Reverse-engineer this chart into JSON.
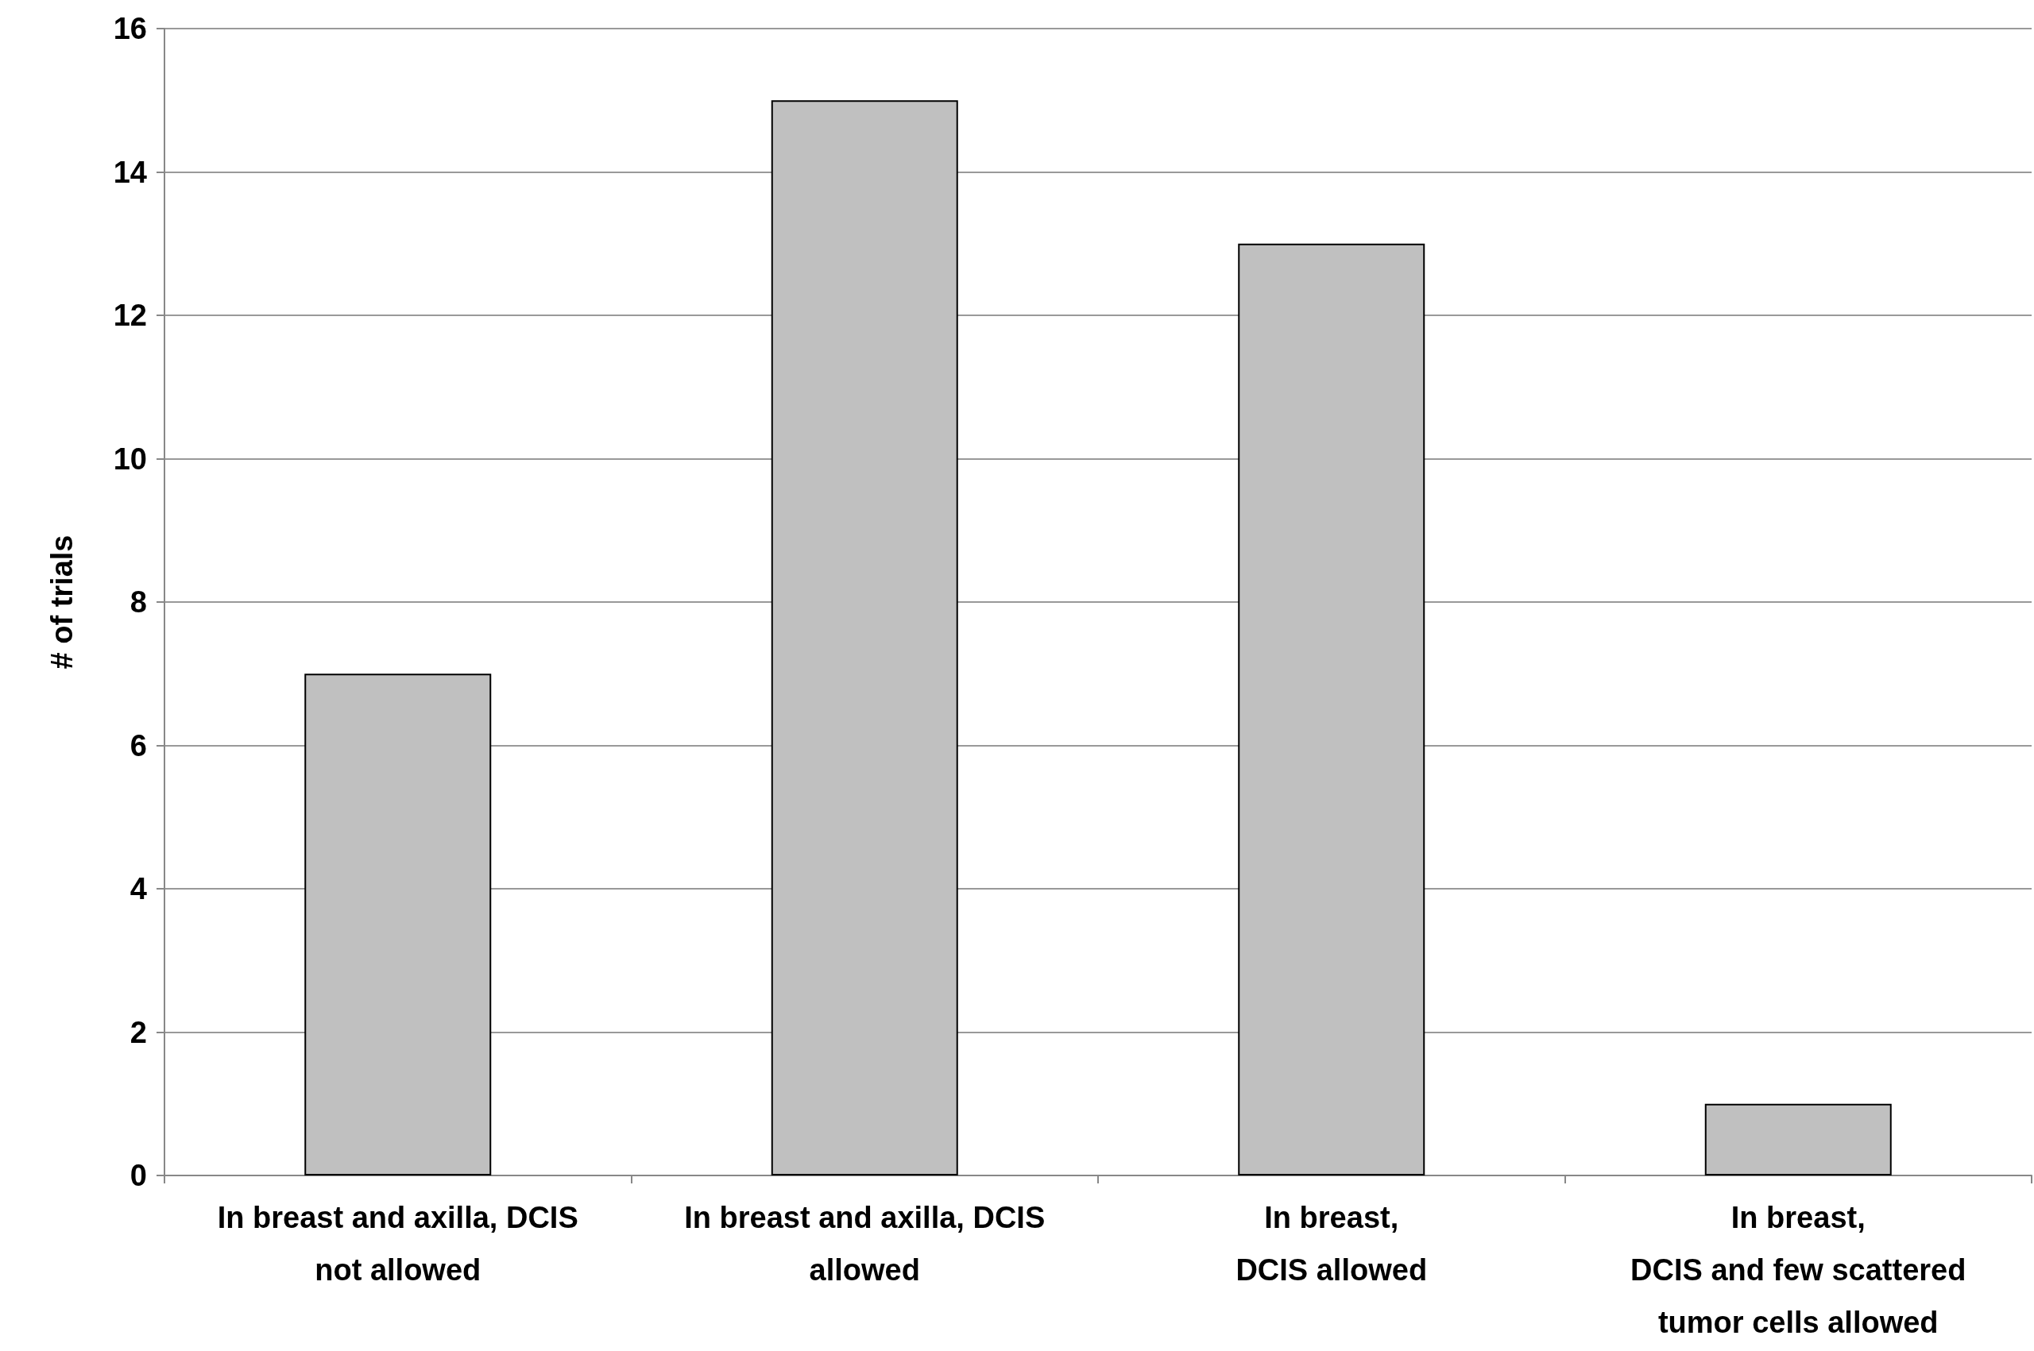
{
  "chart_data": {
    "type": "bar",
    "ylabel": "# of trials",
    "categories": [
      "In breast and axilla, DCIS\nnot allowed",
      "In breast and axilla, DCIS\nallowed",
      "In breast,\nDCIS allowed",
      "In breast,\nDCIS and few scattered\ntumor cells allowed"
    ],
    "values": [
      7,
      15,
      13,
      1
    ],
    "color": "#c0c0c0",
    "ylim": [
      0,
      16
    ],
    "yticks": [
      0,
      2,
      4,
      6,
      8,
      10,
      12,
      14,
      16
    ],
    "grid": "y"
  }
}
